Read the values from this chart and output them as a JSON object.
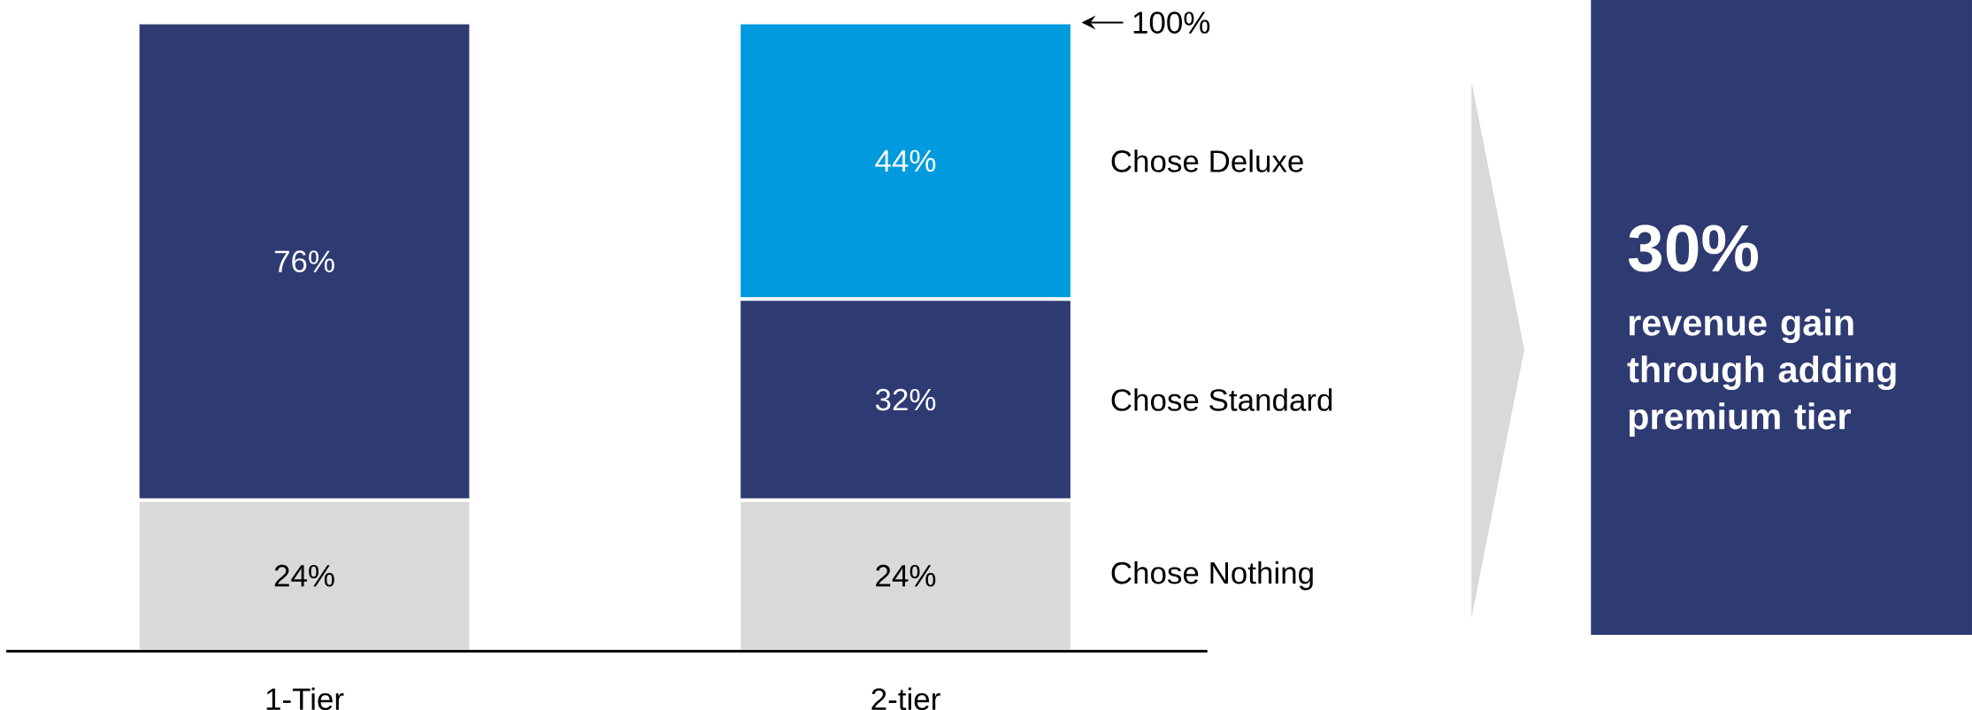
{
  "chart_data": {
    "type": "bar",
    "stacked": true,
    "categories": [
      "1-Tier",
      "2-tier"
    ],
    "series": [
      {
        "name": "Chose Nothing",
        "color": "#d9d9d9",
        "values": [
          24,
          24
        ],
        "value_labels": [
          "24%",
          "24%"
        ]
      },
      {
        "name": "Chose Standard",
        "color": "#2e3a72",
        "values": [
          76,
          32
        ],
        "value_labels": [
          "76%",
          "32%"
        ]
      },
      {
        "name": "Chose Deluxe",
        "color": "#009ade",
        "values": [
          null,
          44
        ],
        "value_labels": [
          null,
          "44%"
        ]
      }
    ],
    "annotations": [
      "100%",
      "30%",
      "revenue gain through adding premium tier"
    ]
  }
}
